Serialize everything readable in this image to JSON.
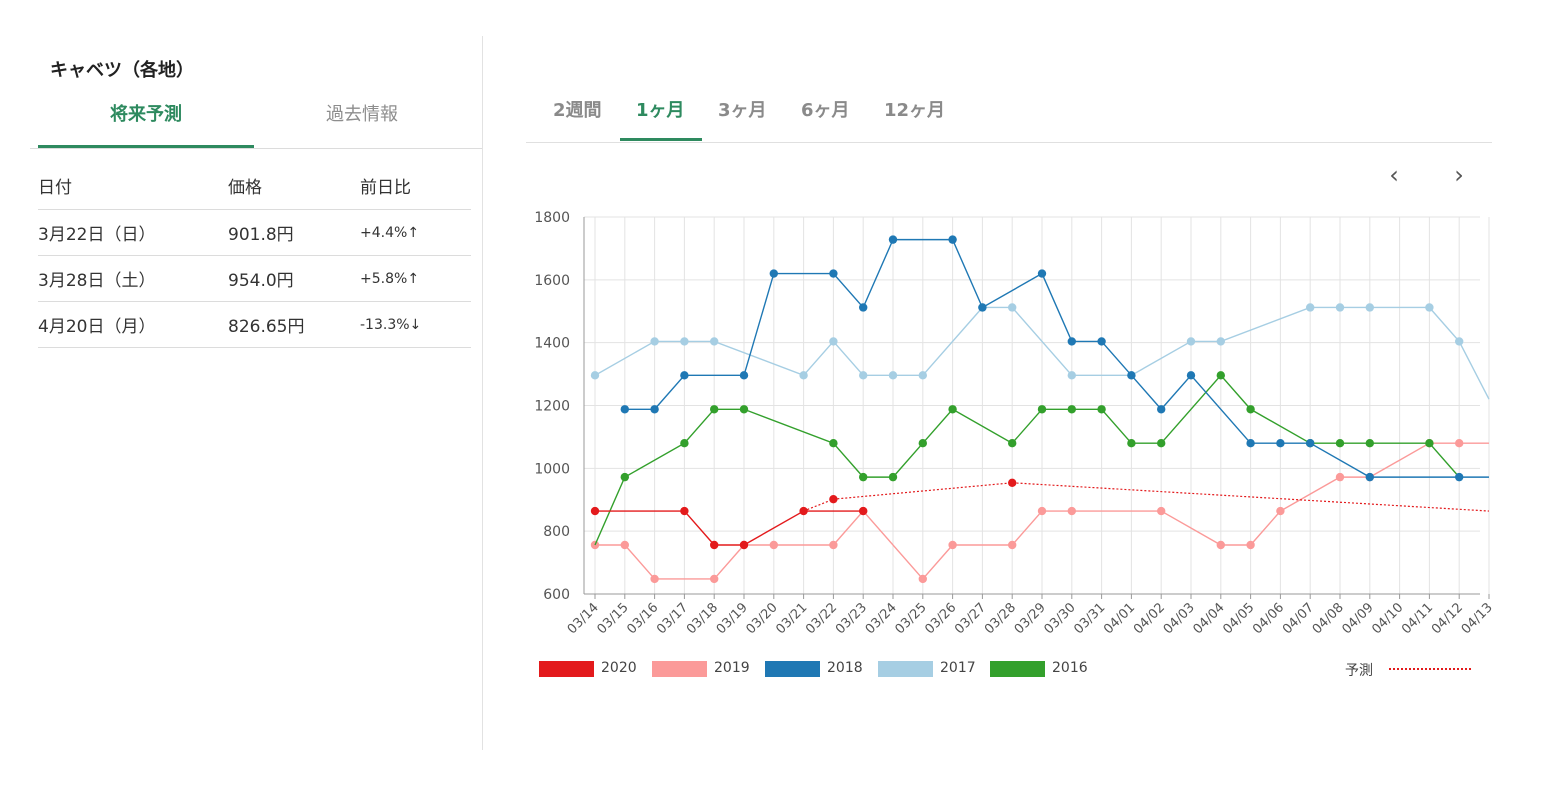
{
  "left_panel": {
    "title": "キャベツ（各地）",
    "tabs": [
      {
        "label": "将来予測",
        "active": true
      },
      {
        "label": "過去情報",
        "active": false
      }
    ],
    "table": {
      "headers": [
        "日付",
        "価格",
        "前日比"
      ],
      "rows": [
        {
          "date": "3月22日（日）",
          "price": "901.8円",
          "change": "+4.4%",
          "arrow": "↑",
          "direction": "up"
        },
        {
          "date": "3月28日（土）",
          "price": "954.0円",
          "change": "+5.8%",
          "arrow": "↑",
          "direction": "up"
        },
        {
          "date": "4月20日（月）",
          "price": "826.65円",
          "change": "-13.3%",
          "arrow": "↓",
          "direction": "down"
        }
      ]
    }
  },
  "range_tabs": [
    {
      "label": "2週間",
      "active": false
    },
    {
      "label": "1ヶ月",
      "active": true
    },
    {
      "label": "3ヶ月",
      "active": false
    },
    {
      "label": "6ヶ月",
      "active": false
    },
    {
      "label": "12ヶ月",
      "active": false
    }
  ],
  "nav": {
    "prev": "‹",
    "next": "›"
  },
  "colors": {
    "accent": "#2e8a5f",
    "up": "#e35d5d",
    "down": "#2e8a5f"
  },
  "chart_data": {
    "type": "line",
    "ylim": [
      600,
      1800
    ],
    "yticks": [
      600,
      800,
      1000,
      1200,
      1400,
      1600,
      1800
    ],
    "grid": true,
    "legend_position": "bottom",
    "categories": [
      "03/14",
      "03/15",
      "03/16",
      "03/17",
      "03/18",
      "03/19",
      "03/20",
      "03/21",
      "03/22",
      "03/23",
      "03/24",
      "03/25",
      "03/26",
      "03/27",
      "03/28",
      "03/29",
      "03/30",
      "03/31",
      "04/01",
      "04/02",
      "04/03",
      "04/04",
      "04/05",
      "04/06",
      "04/07",
      "04/08",
      "04/09",
      "04/10",
      "04/11",
      "04/12",
      "04/13"
    ],
    "series": [
      {
        "name": "2020",
        "color": "#e31a1c",
        "values": [
          864,
          864,
          null,
          864,
          756,
          756,
          null,
          864,
          null,
          864,
          null,
          null,
          null,
          null,
          null,
          null,
          null,
          null,
          null,
          null,
          null,
          null,
          null,
          null,
          null,
          null,
          null,
          null,
          null,
          null,
          null
        ],
        "markers": [
          true,
          false,
          false,
          true,
          true,
          true,
          false,
          true,
          false,
          true,
          false,
          false,
          false,
          false,
          false,
          false,
          false,
          false,
          false,
          false,
          false,
          false,
          false,
          false,
          false,
          false,
          false,
          false,
          false,
          false,
          false
        ]
      },
      {
        "name": "2019",
        "color": "#fb9a99",
        "values": [
          756,
          756,
          648,
          null,
          648,
          756,
          756,
          null,
          756,
          864,
          null,
          648,
          756,
          null,
          756,
          864,
          864,
          null,
          null,
          864,
          null,
          756,
          756,
          864,
          null,
          972,
          972,
          null,
          1080,
          1080,
          1080
        ],
        "markers": [
          true,
          true,
          true,
          false,
          true,
          true,
          true,
          false,
          true,
          true,
          false,
          true,
          true,
          false,
          true,
          true,
          true,
          false,
          false,
          true,
          false,
          true,
          true,
          true,
          false,
          true,
          true,
          false,
          true,
          true,
          false
        ]
      },
      {
        "name": "2018",
        "color": "#1f78b4",
        "values": [
          null,
          1188,
          1188,
          1296,
          null,
          1296,
          1620,
          null,
          1620,
          1512,
          1728,
          null,
          1728,
          1512,
          null,
          1620,
          1404,
          1404,
          1296,
          1188,
          1296,
          null,
          1080,
          1080,
          1080,
          null,
          972,
          null,
          null,
          972,
          972
        ],
        "markers": [
          false,
          true,
          true,
          true,
          false,
          true,
          true,
          false,
          true,
          true,
          true,
          false,
          true,
          true,
          false,
          true,
          true,
          true,
          true,
          true,
          true,
          false,
          true,
          true,
          true,
          false,
          true,
          false,
          false,
          true,
          false
        ]
      },
      {
        "name": "2017",
        "color": "#a6cee3",
        "values": [
          1296,
          null,
          1404,
          1404,
          1404,
          null,
          null,
          1296,
          1404,
          1296,
          1296,
          1296,
          null,
          1512,
          1512,
          null,
          1296,
          null,
          1296,
          null,
          1404,
          1404,
          null,
          null,
          1512,
          1512,
          1512,
          null,
          1512,
          1404,
          1220
        ],
        "markers": [
          true,
          false,
          true,
          true,
          true,
          false,
          false,
          true,
          true,
          true,
          true,
          true,
          false,
          true,
          true,
          false,
          true,
          false,
          true,
          false,
          true,
          true,
          false,
          false,
          true,
          true,
          true,
          false,
          true,
          true,
          false
        ]
      },
      {
        "name": "2016",
        "color": "#33a02c",
        "values": [
          756,
          972,
          null,
          1080,
          1188,
          1188,
          null,
          null,
          1080,
          972,
          972,
          1080,
          1188,
          null,
          1080,
          1188,
          1188,
          1188,
          1080,
          1080,
          null,
          1296,
          1188,
          null,
          1080,
          1080,
          1080,
          null,
          1080,
          972,
          null
        ],
        "markers": [
          false,
          true,
          false,
          true,
          true,
          true,
          false,
          false,
          true,
          true,
          true,
          true,
          true,
          false,
          true,
          true,
          true,
          true,
          true,
          true,
          false,
          true,
          true,
          false,
          true,
          true,
          true,
          false,
          true,
          false,
          false
        ]
      }
    ],
    "prediction": {
      "label": "予測",
      "color": "#e31a1c",
      "points": [
        {
          "x": "03/21",
          "y": 864
        },
        {
          "x": "03/22",
          "y": 901.8
        },
        {
          "x": "03/28",
          "y": 954.0
        },
        {
          "x": "04/13",
          "y": 864
        }
      ],
      "markers": [
        false,
        true,
        true,
        false
      ]
    }
  }
}
